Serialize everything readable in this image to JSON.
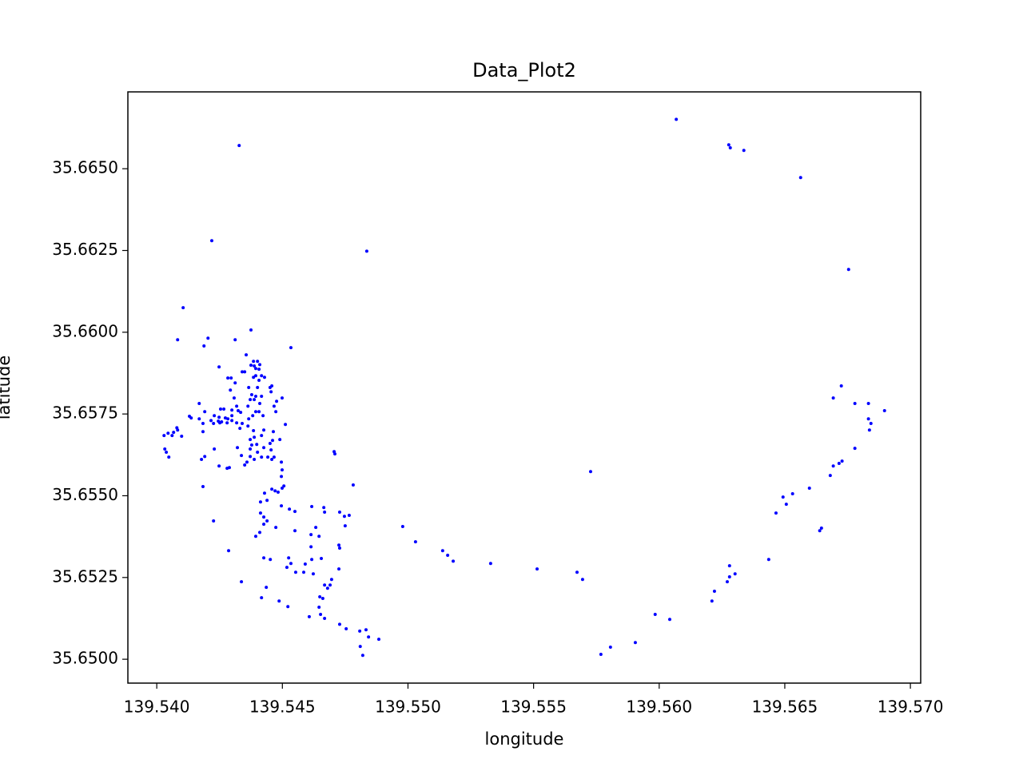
{
  "chart_data": {
    "type": "scatter",
    "title": "Data_Plot2",
    "x_label": "longitude",
    "y_label": "latitude",
    "color": "#0000ff",
    "x": [
      139.56068,
      139.56277,
      139.56283,
      139.56337,
      139.56563,
      139.56754,
      139.56725,
      139.56693,
      139.56779,
      139.56833,
      139.56897,
      139.56833,
      139.56843,
      139.56837,
      139.56779,
      139.56728,
      139.56716,
      139.56693,
      139.56681,
      139.56598,
      139.56531,
      139.56493,
      139.56506,
      139.56465,
      139.56646,
      139.56639,
      139.56436,
      139.5628,
      139.56302,
      139.5628,
      139.56271,
      139.5622,
      139.5621,
      139.56042,
      139.55984,
      139.55905,
      139.55806,
      139.55768,
      139.55727,
      139.55673,
      139.55695,
      139.55514,
      139.55329,
      139.5518,
      139.55158,
      139.55138,
      139.5503,
      139.54979,
      139.54836,
      139.54782,
      139.54706,
      139.54709,
      139.54534,
      139.54328,
      139.54219,
      139.54105,
      139.54083,
      139.54204,
      139.54188,
      139.54375,
      139.54312,
      139.54248,
      139.54884,
      139.54843,
      139.54833,
      139.54808,
      139.5482,
      139.5481,
      139.54754,
      139.54728,
      139.54668,
      139.54652,
      139.54646,
      139.54649,
      139.54661,
      139.54607,
      139.54522,
      139.54487,
      139.54417,
      139.54436,
      139.54337,
      139.54286,
      139.54226,
      139.54184,
      139.5468,
      139.5469,
      139.54696,
      139.54668,
      139.54725,
      139.54728,
      139.54725,
      139.54623,
      139.54585,
      139.54617,
      139.54655,
      139.54614,
      139.54646,
      139.54614,
      139.54633,
      139.54617,
      139.54665,
      139.54668,
      139.54728,
      139.54747,
      139.54766,
      139.5475,
      139.54591,
      139.54553,
      139.54534,
      139.54525,
      139.54518,
      139.54452,
      139.54426,
      139.54474,
      139.5455,
      139.5455,
      139.54528,
      139.54496,
      139.54394,
      139.5441,
      139.54426,
      139.54439,
      139.54426,
      139.54413,
      139.54439,
      139.54413,
      139.54429,
      139.54458,
      139.54471,
      139.54483,
      139.54499,
      139.54506,
      139.54496,
      139.54499,
      139.54496,
      139.54458,
      139.5449,
      139.54512,
      139.54464,
      139.54461,
      139.54451,
      139.54455,
      139.54467,
      139.54442,
      139.54426,
      139.54417,
      139.54401,
      139.54398,
      139.54417,
      139.54426,
      139.54385,
      139.54388,
      139.54372,
      139.54378,
      139.54372,
      139.54388,
      139.54359,
      139.5435,
      139.54372,
      139.54337,
      139.54321,
      139.54331,
      139.54318,
      139.5434,
      139.54363,
      139.54366,
      139.54334,
      139.54324,
      139.54299,
      139.54299,
      139.54299,
      139.54283,
      139.54273,
      139.5428,
      139.54258,
      139.54248,
      139.54254,
      139.54267,
      139.54245,
      139.54216,
      139.54229,
      139.54226,
      139.54184,
      139.54184,
      139.54169,
      139.54169,
      139.54191,
      139.5413,
      139.54137,
      139.54191,
      139.54178,
      139.54229,
      139.54248,
      139.5428,
      139.54289,
      139.54318,
      139.54308,
      139.54293,
      139.54312,
      139.54283,
      139.54296,
      139.54366,
      139.5434,
      139.5435,
      139.54356,
      139.54372,
      139.54378,
      139.54363,
      139.54382,
      139.54394,
      139.54375,
      139.54385,
      139.54388,
      139.54401,
      139.54394,
      139.5441,
      139.54407,
      139.54385,
      139.54394,
      139.54407,
      139.54417,
      139.54429,
      139.54401,
      139.54394,
      139.54417,
      139.54388,
      139.5441,
      139.54407,
      139.54423,
      139.54451,
      139.54458,
      139.54455,
      139.54477,
      139.54467,
      139.54474,
      139.54499,
      139.54251,
      139.54029,
      139.54045,
      139.54067,
      139.54061,
      139.54083,
      139.5408,
      139.54099,
      139.54032,
      139.54038,
      139.54048
    ],
    "y": [
      35.66651,
      35.66573,
      35.66564,
      35.66556,
      35.66473,
      35.66192,
      35.65836,
      35.65799,
      35.65782,
      35.65782,
      35.6576,
      35.65735,
      35.65721,
      35.65701,
      35.65645,
      35.65606,
      35.65599,
      35.65591,
      35.65562,
      35.65523,
      35.65506,
      35.65496,
      35.65474,
      35.65447,
      35.65401,
      35.65393,
      35.65305,
      35.65286,
      35.65261,
      35.65252,
      35.65237,
      35.65208,
      35.65178,
      35.65122,
      35.65137,
      35.65051,
      35.65037,
      35.65015,
      35.65574,
      35.65266,
      35.65244,
      35.65276,
      35.65293,
      35.653,
      35.65318,
      35.65332,
      35.65359,
      35.65406,
      35.66248,
      35.65533,
      35.65635,
      35.65628,
      35.65953,
      35.66571,
      35.6628,
      35.66075,
      35.65977,
      35.65982,
      35.65958,
      35.66007,
      35.65977,
      35.65894,
      35.65061,
      35.65068,
      35.6509,
      35.65086,
      35.65012,
      35.65039,
      35.65093,
      35.65107,
      35.65125,
      35.65137,
      35.65159,
      35.65191,
      35.65186,
      35.6513,
      35.65161,
      35.65178,
      35.65188,
      35.6522,
      35.65237,
      35.65332,
      35.65423,
      35.65528,
      35.65217,
      35.65227,
      35.65244,
      35.65227,
      35.65276,
      35.6534,
      35.65349,
      35.65261,
      35.65266,
      35.65305,
      35.65308,
      35.65344,
      35.65376,
      35.65381,
      35.65403,
      35.65467,
      35.65464,
      35.6545,
      35.6545,
      35.65437,
      35.6544,
      35.65408,
      35.65291,
      35.65266,
      35.65293,
      35.6531,
      35.65281,
      35.65305,
      35.6531,
      35.65403,
      35.65393,
      35.65452,
      35.65459,
      35.65469,
      35.65376,
      35.65388,
      35.65413,
      35.65423,
      35.65435,
      35.65447,
      35.65486,
      35.65481,
      35.65508,
      35.6552,
      35.65515,
      35.65511,
      35.65523,
      35.6553,
      35.65559,
      35.65579,
      35.65603,
      35.65611,
      35.65672,
      35.65718,
      35.65696,
      35.65669,
      35.6566,
      35.6564,
      35.65618,
      35.65618,
      35.65647,
      35.65618,
      35.65633,
      35.65657,
      35.65684,
      35.65701,
      35.65699,
      35.65679,
      35.65672,
      35.65655,
      35.65643,
      35.65611,
      35.65603,
      35.65594,
      35.6562,
      35.65623,
      35.65647,
      35.65706,
      35.65723,
      35.65721,
      35.65713,
      35.65735,
      35.65755,
      35.6576,
      35.65762,
      35.65745,
      35.6573,
      35.65735,
      35.65738,
      35.65723,
      35.65726,
      35.6574,
      35.65765,
      35.65765,
      35.65728,
      35.6573,
      35.65745,
      35.65721,
      35.65721,
      35.65696,
      35.65735,
      35.65782,
      35.65757,
      35.65743,
      35.65738,
      35.6562,
      35.65611,
      35.65643,
      35.65591,
      35.65584,
      35.65586,
      35.65774,
      35.65799,
      35.65823,
      35.65845,
      35.6586,
      35.6586,
      35.65831,
      35.65879,
      35.65879,
      35.65931,
      35.65794,
      35.65809,
      35.65774,
      35.65745,
      35.65757,
      35.65899,
      35.65911,
      35.65897,
      35.65911,
      35.65889,
      35.65901,
      35.65887,
      35.65862,
      35.65867,
      35.65853,
      35.65867,
      35.65862,
      35.65831,
      35.65804,
      35.65804,
      35.65794,
      35.65782,
      35.65757,
      35.65745,
      35.65831,
      35.65836,
      35.65818,
      35.65789,
      35.65774,
      35.65757,
      35.65799,
      35.65723,
      35.65684,
      35.65691,
      35.65694,
      35.65684,
      35.65701,
      35.65708,
      35.65682,
      35.65643,
      35.65633,
      35.65618
    ],
    "xlim": [
      139.53885,
      139.57041
    ],
    "ylim": [
      35.64927,
      35.66735
    ],
    "xticks": [
      {
        "value": 139.54,
        "label": "139.540"
      },
      {
        "value": 139.545,
        "label": "139.545"
      },
      {
        "value": 139.55,
        "label": "139.550"
      },
      {
        "value": 139.555,
        "label": "139.555"
      },
      {
        "value": 139.56,
        "label": "139.560"
      },
      {
        "value": 139.565,
        "label": "139.565"
      },
      {
        "value": 139.57,
        "label": "139.570"
      }
    ],
    "yticks": [
      {
        "value": 35.65,
        "label": "35.6500"
      },
      {
        "value": 35.6525,
        "label": "35.6525"
      },
      {
        "value": 35.655,
        "label": "35.6550"
      },
      {
        "value": 35.6575,
        "label": "35.6575"
      },
      {
        "value": 35.66,
        "label": "35.6600"
      },
      {
        "value": 35.6625,
        "label": "35.6625"
      },
      {
        "value": 35.665,
        "label": "35.6650"
      }
    ],
    "grid": false
  }
}
